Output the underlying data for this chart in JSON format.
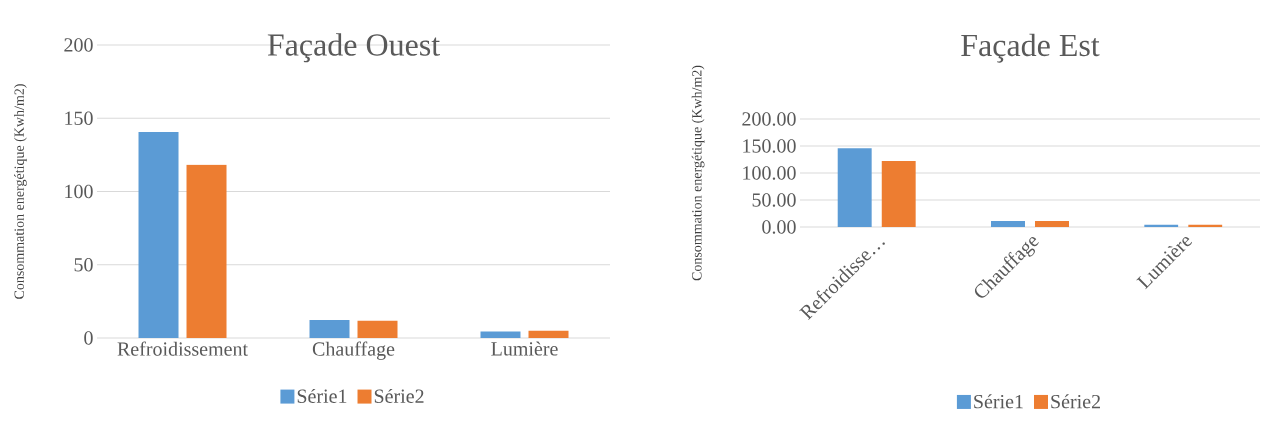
{
  "chart_data": [
    {
      "type": "bar",
      "title": "Façade Ouest",
      "ylabel": "Consommation energétique (Kwh/m2)",
      "categories": [
        "Refroidissement",
        "Chauffage",
        "Lumière"
      ],
      "series": [
        {
          "name": "Série1",
          "color": "#5b9bd5",
          "values": [
            140.6,
            12.2,
            4.4
          ]
        },
        {
          "name": "Série2",
          "color": "#ed7d31",
          "values": [
            118.2,
            11.7,
            5.0
          ]
        }
      ],
      "ylim": [
        0,
        200
      ],
      "yticks": [
        0,
        50,
        100,
        150,
        200
      ],
      "grid": "y",
      "legend": "bottom"
    },
    {
      "type": "bar",
      "title": "Façade Est",
      "ylabel": "Consommation energétique (Kwh/m2)",
      "categories": [
        "Refroidisse…",
        "Chauffage",
        "Lumière"
      ],
      "series": [
        {
          "name": "Série1",
          "color": "#5b9bd5",
          "values": [
            146,
            11,
            4
          ]
        },
        {
          "name": "Série2",
          "color": "#ed7d31",
          "values": [
            122,
            11,
            4
          ]
        }
      ],
      "ylim": [
        0,
        200
      ],
      "yticks": [
        {
          "value": 0,
          "label": "0.00"
        },
        {
          "value": 50,
          "label": "50.00"
        },
        {
          "value": 100,
          "label": "100.00"
        },
        {
          "value": 150,
          "label": "150.00"
        },
        {
          "value": 200,
          "label": "200.00"
        }
      ],
      "grid": "y",
      "legend": "bottom"
    }
  ]
}
